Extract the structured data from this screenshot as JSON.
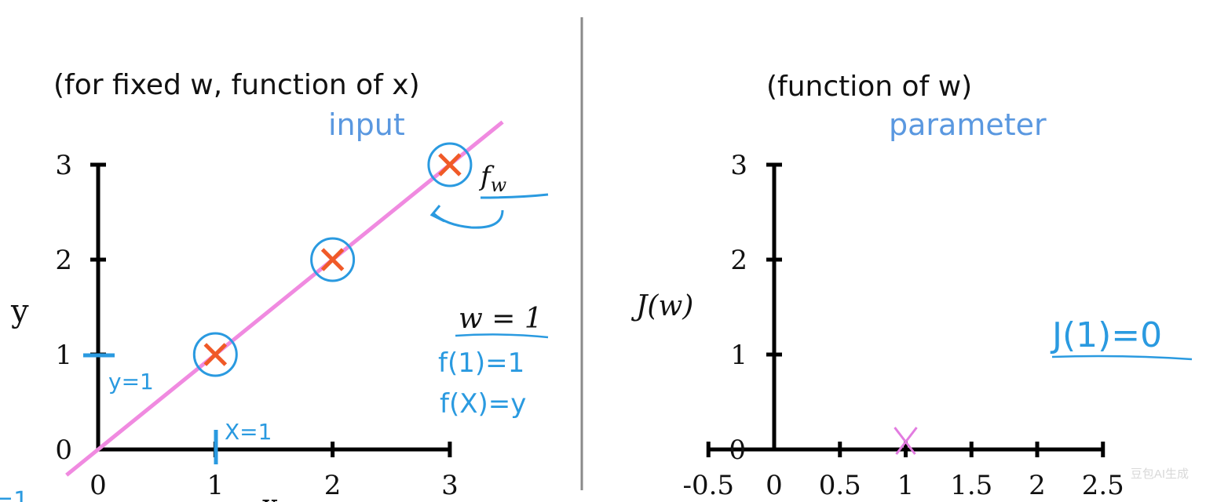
{
  "left_panel": {
    "subtitle": "(for fixed w, function of x)",
    "input_label": "input",
    "model_label": "fw",
    "y_axis_label": "y",
    "x_axis_label": "x",
    "w_label": "w = 1",
    "note_f1": "f(1)=1",
    "note_fx": "f(X)=y",
    "y_eq_label": "y=1",
    "x_eq_label": "X=1",
    "edge_fragment": "=1",
    "x_ticks": [
      "0",
      "1",
      "2",
      "3"
    ],
    "y_ticks": [
      "0",
      "1",
      "2",
      "3"
    ]
  },
  "right_panel": {
    "subtitle": "(function of w)",
    "parameter_label": "parameter",
    "y_axis_label": "J(w)",
    "note_j1": "J(1)=0",
    "x_ticks": [
      "-0.5",
      "0",
      "0.5",
      "1",
      "1.5",
      "2",
      "2.5"
    ],
    "y_ticks": [
      "0",
      "1",
      "2",
      "3"
    ]
  },
  "chart_data": [
    {
      "type": "scatter",
      "points": [
        {
          "x": 1,
          "y": 1
        },
        {
          "x": 2,
          "y": 2
        },
        {
          "x": 3,
          "y": 3
        }
      ],
      "line": {
        "w": 1,
        "equation": "y = w*x"
      },
      "xlim": [
        0,
        3
      ],
      "ylim": [
        0,
        3
      ]
    },
    {
      "type": "scatter",
      "points": [
        {
          "x": 1,
          "y": 0
        }
      ],
      "xlim": [
        -0.5,
        2.5
      ],
      "ylim": [
        0,
        3
      ]
    }
  ],
  "watermark": "豆包AI生成",
  "colors": {
    "axis": "#000000",
    "data_marker": "#f05a28",
    "fit_line": "#f08ae0",
    "annotation": "#2a9ae0",
    "label_blue": "#5a98e0",
    "divider": "#8a8a8a"
  }
}
